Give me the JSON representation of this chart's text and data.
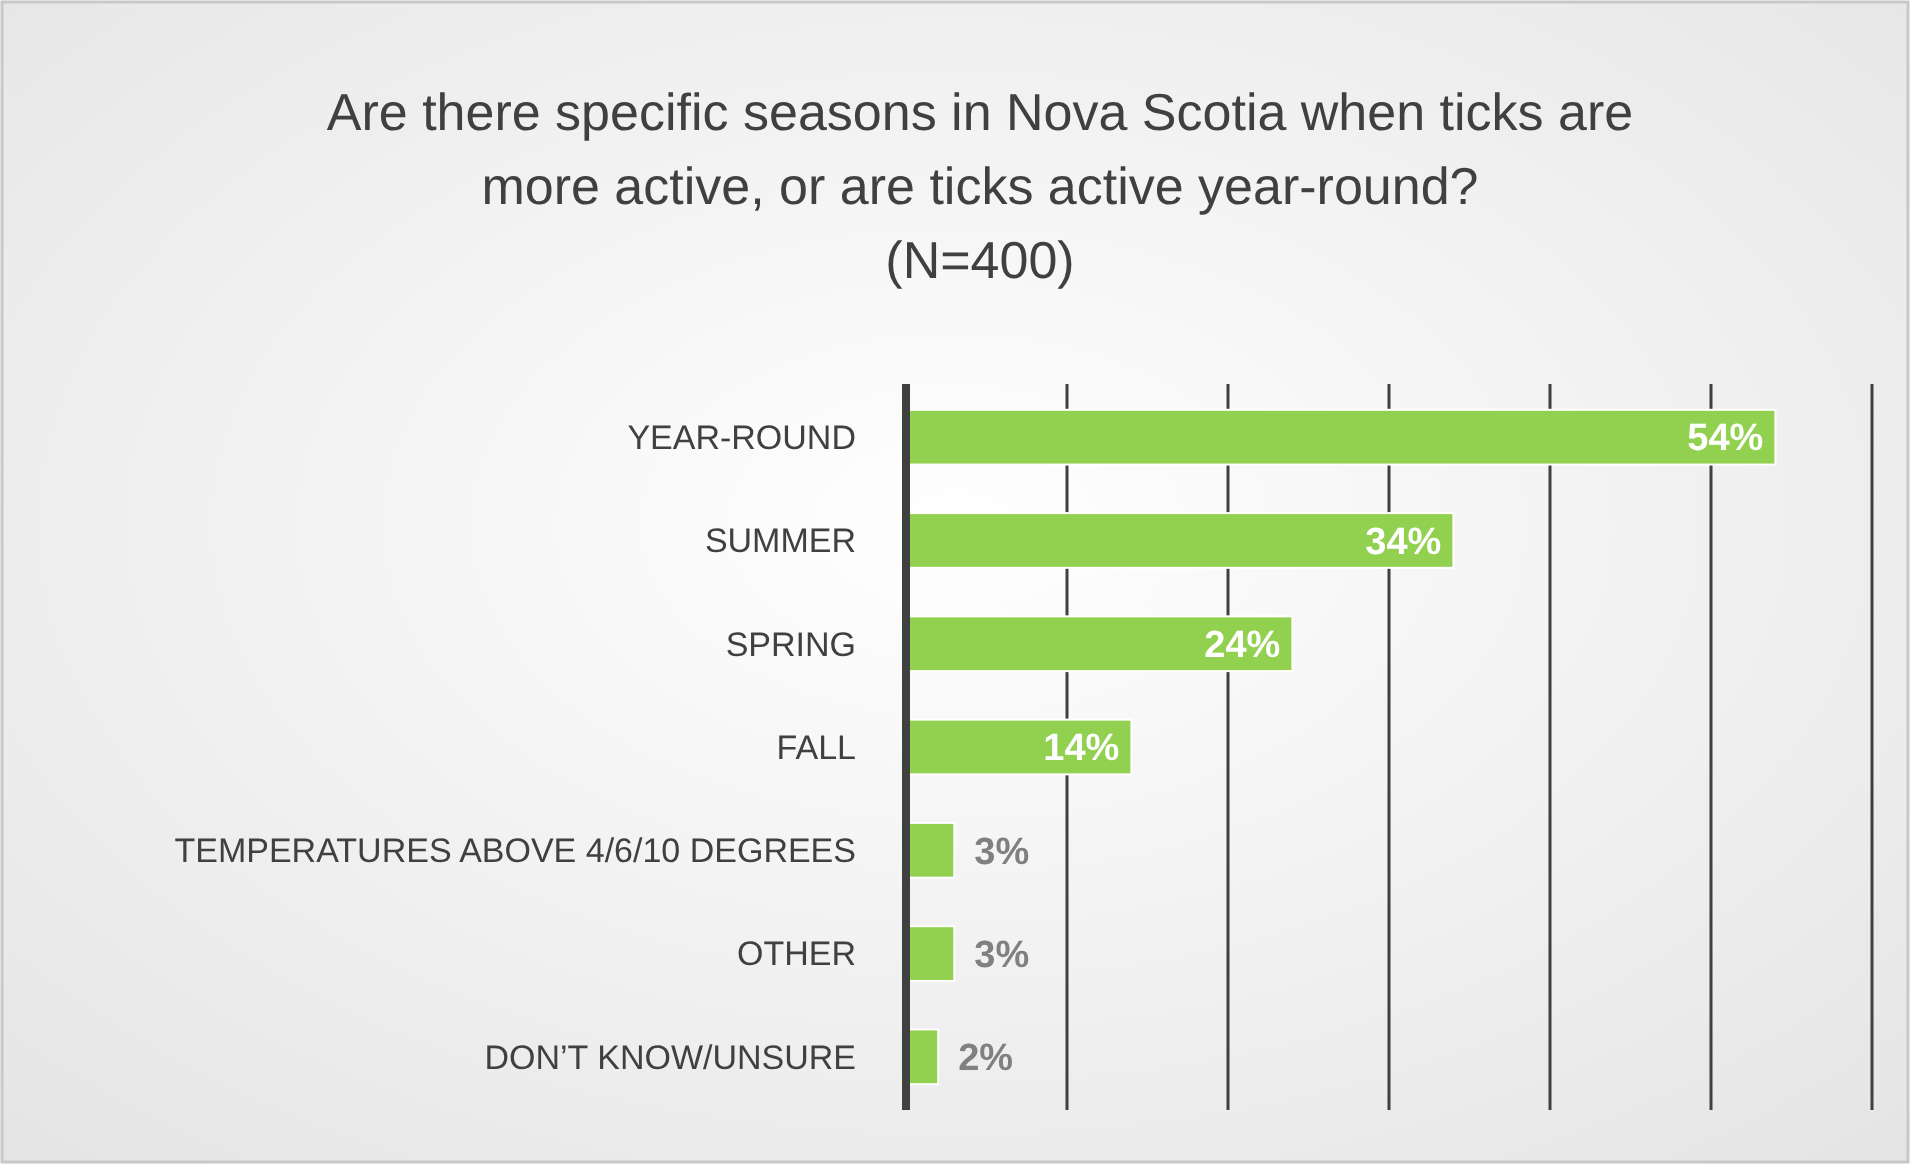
{
  "chart_data": {
    "type": "bar",
    "orientation": "horizontal",
    "title": "Are there specific seasons in Nova Scotia when ticks are more active, or are ticks active year-round?",
    "subtitle": "(N=400)",
    "categories": [
      "YEAR-ROUND",
      "SUMMER",
      "SPRING",
      "FALL",
      "TEMPERATURES ABOVE 4/6/10 DEGREES",
      "OTHER",
      "DON’T KNOW/UNSURE"
    ],
    "values": [
      54,
      34,
      24,
      14,
      3,
      3,
      2
    ],
    "color": "#92d050",
    "value_labels": [
      "54%",
      "34%",
      "24%",
      "14%",
      "3%",
      "3%",
      "2%"
    ],
    "grid": "x",
    "tick_labels": "y"
  }
}
